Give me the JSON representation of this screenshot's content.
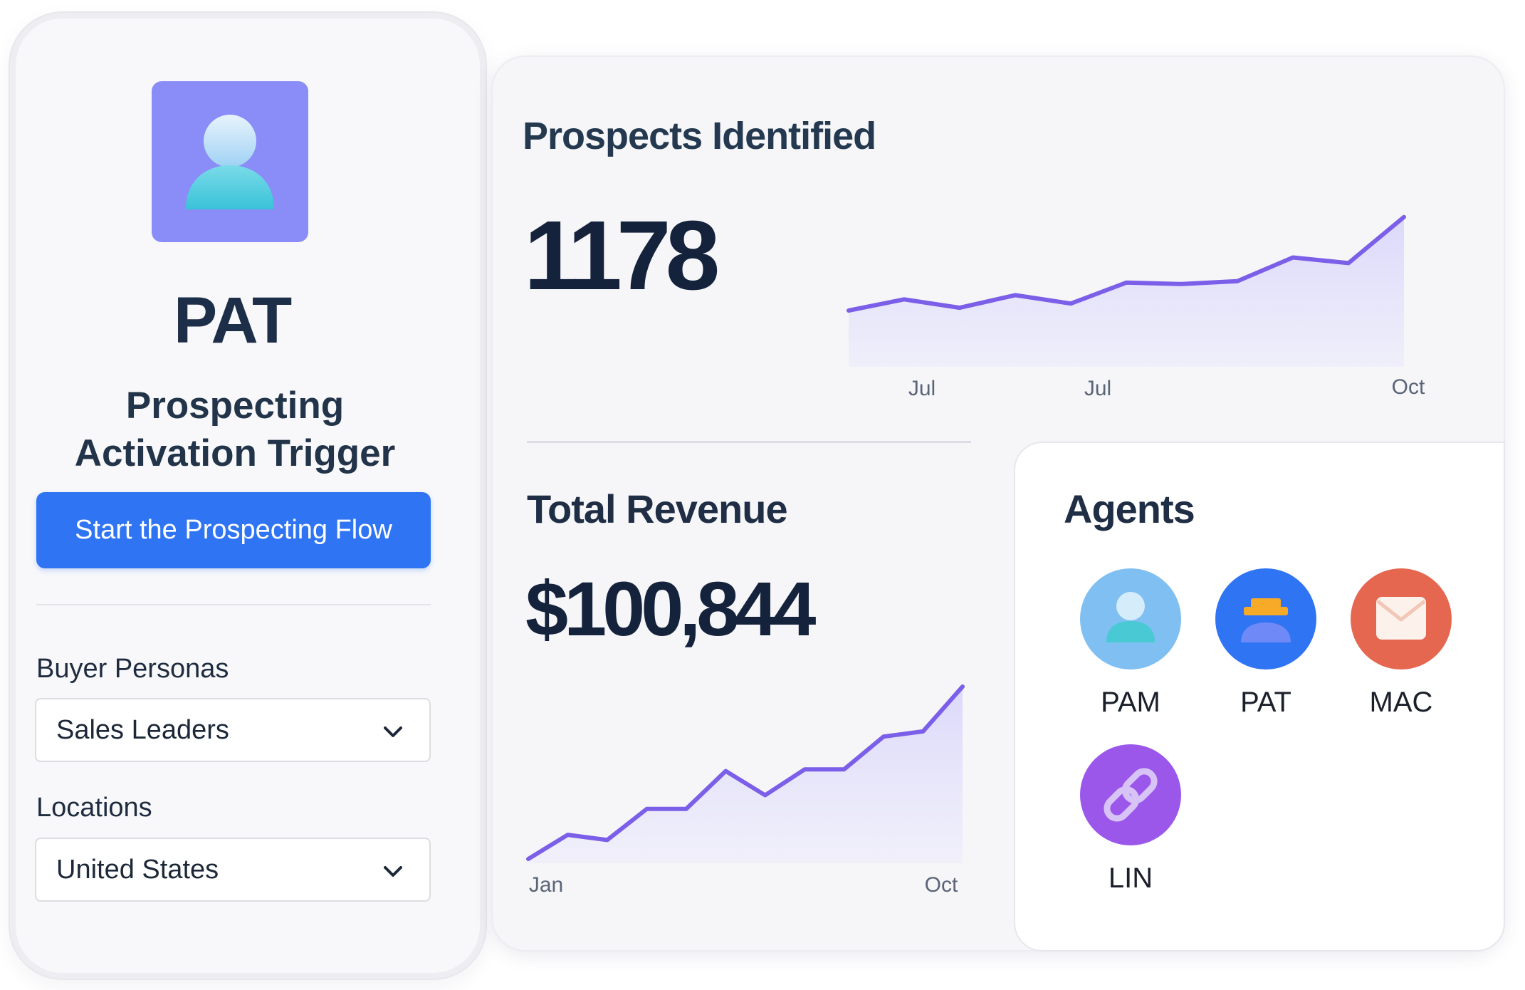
{
  "left_panel": {
    "title": "PAT",
    "subtitle": "Prospecting Activation Trigger",
    "start_button": "Start the Prospecting Flow",
    "buyer_personas": {
      "label": "Buyer Personas",
      "value": "Sales Leaders"
    },
    "locations": {
      "label": "Locations",
      "value": "United States"
    },
    "avatar_icon": "user-icon",
    "colors": {
      "avatar_tile": "#8a8cf7",
      "button": "#2f74f3"
    }
  },
  "prospects": {
    "title": "Prospects Identified",
    "value": "1178"
  },
  "revenue": {
    "title": "Total Revenue",
    "value": "$100,844"
  },
  "agents": {
    "title": "Agents",
    "items": [
      {
        "name": "PAM",
        "icon": "user-icon",
        "color": "#7fbff2"
      },
      {
        "name": "PAT",
        "icon": "hat-user-icon",
        "color": "#2f74f3"
      },
      {
        "name": "MAC",
        "icon": "mail-icon",
        "color": "#e5674f"
      },
      {
        "name": "LIN",
        "icon": "link-icon",
        "color": "#9a57ea"
      }
    ]
  },
  "chart_data": [
    {
      "type": "area",
      "title": "Prospects Identified",
      "tick_labels": [
        "Jul",
        "Jul",
        "Oct"
      ],
      "values": [
        0,
        0.08,
        0.02,
        0.11,
        0.05,
        0.2,
        0.19,
        0.21,
        0.38,
        0.34,
        0.67
      ],
      "grid": false,
      "line_color": "#7b5fe8"
    },
    {
      "type": "area",
      "title": "Total Revenue",
      "tick_labels": [
        "Jan",
        "Oct"
      ],
      "values": [
        0,
        0.14,
        0.11,
        0.29,
        0.29,
        0.51,
        0.37,
        0.52,
        0.52,
        0.71,
        0.74,
        1.0
      ],
      "grid": false,
      "line_color": "#7b5fe8"
    }
  ]
}
